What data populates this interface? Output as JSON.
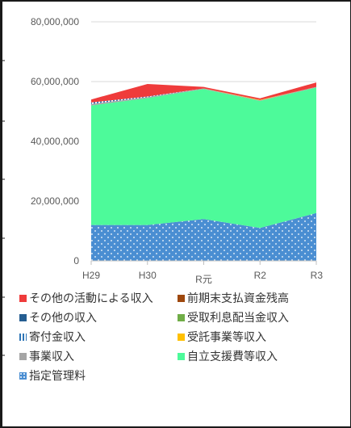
{
  "chart_data": {
    "type": "area",
    "stacked": true,
    "categories": [
      "H29",
      "H30",
      "R元",
      "R2",
      "R3"
    ],
    "y_tick_labels": [
      "0",
      "20,000,000",
      "40,000,000",
      "60,000,000",
      "80,000,000"
    ],
    "ylim": [
      0,
      80000000
    ],
    "grid": true,
    "legend_position": "bottom",
    "series": [
      {
        "name": "指定管理料",
        "color": "#5b9bd5",
        "pattern": "dots",
        "values": [
          12000000,
          12000000,
          14000000,
          11000000,
          16000000
        ]
      },
      {
        "name": "自立支援費等収入",
        "color": "#4dfa9a",
        "values": [
          40000000,
          42500000,
          43500000,
          42500000,
          42000000
        ]
      },
      {
        "name": "事業収入",
        "color": "#a5a5a5",
        "values": [
          500000,
          300000,
          200000,
          200000,
          200000
        ]
      },
      {
        "name": "受託事業等収入",
        "color": "#ffc000",
        "values": [
          0,
          0,
          0,
          200000,
          0
        ]
      },
      {
        "name": "寄付金収入",
        "color": "#2e75b6",
        "pattern": "stripes",
        "values": [
          500000,
          200000,
          0,
          0,
          0
        ]
      },
      {
        "name": "受取利息配当金収入",
        "color": "#70ad47",
        "values": [
          0,
          0,
          0,
          0,
          0
        ]
      },
      {
        "name": "その他の収入",
        "color": "#255e91",
        "values": [
          0,
          0,
          0,
          0,
          0
        ]
      },
      {
        "name": "前期末支払資金残高",
        "color": "#9e480e",
        "values": [
          0,
          0,
          0,
          0,
          0
        ]
      },
      {
        "name": "その他の活動による収入",
        "color": "#ef3b3b",
        "values": [
          1000000,
          4200000,
          500000,
          500000,
          1500000
        ]
      }
    ]
  },
  "legend_order": [
    "その他の活動による収入",
    "前期末支払資金残高",
    "その他の収入",
    "受取利息配当金収入",
    "寄付金収入",
    "受託事業等収入",
    "事業収入",
    "自立支援費等収入",
    "指定管理料"
  ]
}
